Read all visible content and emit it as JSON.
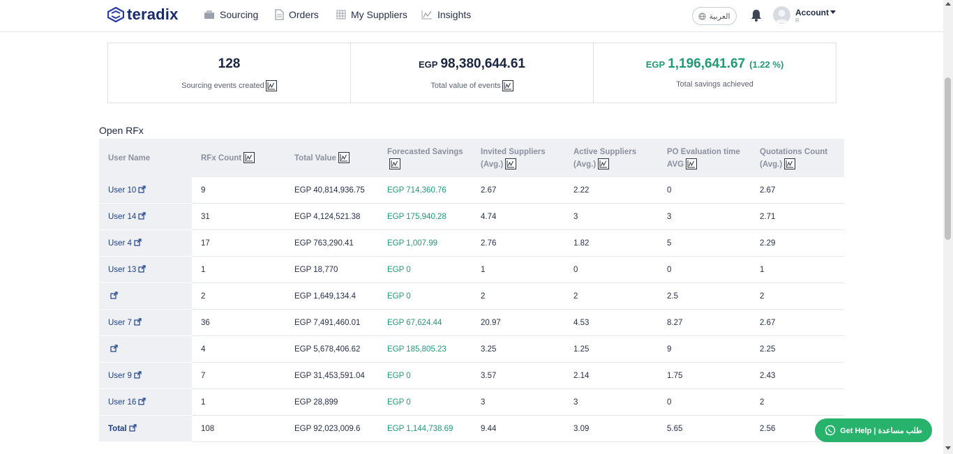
{
  "brand": {
    "name": "teradix"
  },
  "nav": {
    "items": [
      {
        "label": "Sourcing",
        "icon": "sourcing-icon"
      },
      {
        "label": "Orders",
        "icon": "document-icon"
      },
      {
        "label": "My Suppliers",
        "icon": "suppliers-grid-icon"
      },
      {
        "label": "Insights",
        "icon": "chart-line-icon"
      }
    ],
    "language_label": "العربية",
    "account_label": "Account",
    "account_sub": "R"
  },
  "stats": [
    {
      "value": "128",
      "currency": "",
      "percent": "",
      "label": "Sourcing events created"
    },
    {
      "value": "98,380,644.61",
      "currency": "EGP",
      "percent": "",
      "label": "Total value of events"
    },
    {
      "value": "1,196,641.67",
      "currency": "EGP",
      "percent": "(1.22 %)",
      "label": "Total savings achieved"
    }
  ],
  "table": {
    "title": "Open RFx",
    "headers": [
      "User Name",
      "RFx Count",
      "Total Value",
      "Forecasted Savings",
      "Invited Suppliers (Avg.)",
      "Active Suppliers (Avg.)",
      "PO Evaluation time AVG",
      "Quotations Count (Avg.)"
    ],
    "rows": [
      {
        "user": "User 10",
        "count": "9",
        "value": "EGP 40,814,936.75",
        "savings": "EGP 714,360.76",
        "invited": "2.67",
        "active": "2.22",
        "po": "0",
        "quotes": "2.67"
      },
      {
        "user": "User 14",
        "count": "31",
        "value": "EGP 4,124,521.38",
        "savings": "EGP 175,940.28",
        "invited": "4.74",
        "active": "3",
        "po": "3",
        "quotes": "2.71"
      },
      {
        "user": "User 4",
        "count": "17",
        "value": "EGP 763,290.41",
        "savings": "EGP 1,007.99",
        "invited": "2.76",
        "active": "1.82",
        "po": "5",
        "quotes": "2.29"
      },
      {
        "user": "User 13",
        "count": "1",
        "value": "EGP 18,770",
        "savings": "EGP 0",
        "invited": "1",
        "active": "0",
        "po": "0",
        "quotes": "1"
      },
      {
        "user": "",
        "count": "2",
        "value": "EGP 1,649,134.4",
        "savings": "EGP 0",
        "invited": "2",
        "active": "2",
        "po": "2.5",
        "quotes": "2"
      },
      {
        "user": "User 7",
        "count": "36",
        "value": "EGP 7,491,460.01",
        "savings": "EGP 67,624.44",
        "invited": "20.97",
        "active": "4.53",
        "po": "8.27",
        "quotes": "2.67"
      },
      {
        "user": "",
        "count": "4",
        "value": "EGP 5,678,406.62",
        "savings": "EGP 185,805.23",
        "invited": "3.25",
        "active": "1.25",
        "po": "9",
        "quotes": "2.25"
      },
      {
        "user": "User 9",
        "count": "7",
        "value": "EGP 31,453,591.04",
        "savings": "EGP 0",
        "invited": "3.57",
        "active": "2.14",
        "po": "1.75",
        "quotes": "2.43"
      },
      {
        "user": "User 16",
        "count": "1",
        "value": "EGP 28,899",
        "savings": "EGP 0",
        "invited": "3",
        "active": "3",
        "po": "0",
        "quotes": "2"
      },
      {
        "user": "Total",
        "count": "108",
        "value": "EGP 92,023,009.6",
        "savings": "EGP 1,144,738.69",
        "invited": "9.44",
        "active": "3.09",
        "po": "5.65",
        "quotes": "2.56"
      }
    ]
  },
  "help": {
    "label": "Get Help | طلب مساعدة"
  },
  "colors": {
    "brand": "#1b2a6b",
    "accent_green": "#1e9b74",
    "help_green": "#27b36c",
    "link": "#1c3f8a"
  }
}
